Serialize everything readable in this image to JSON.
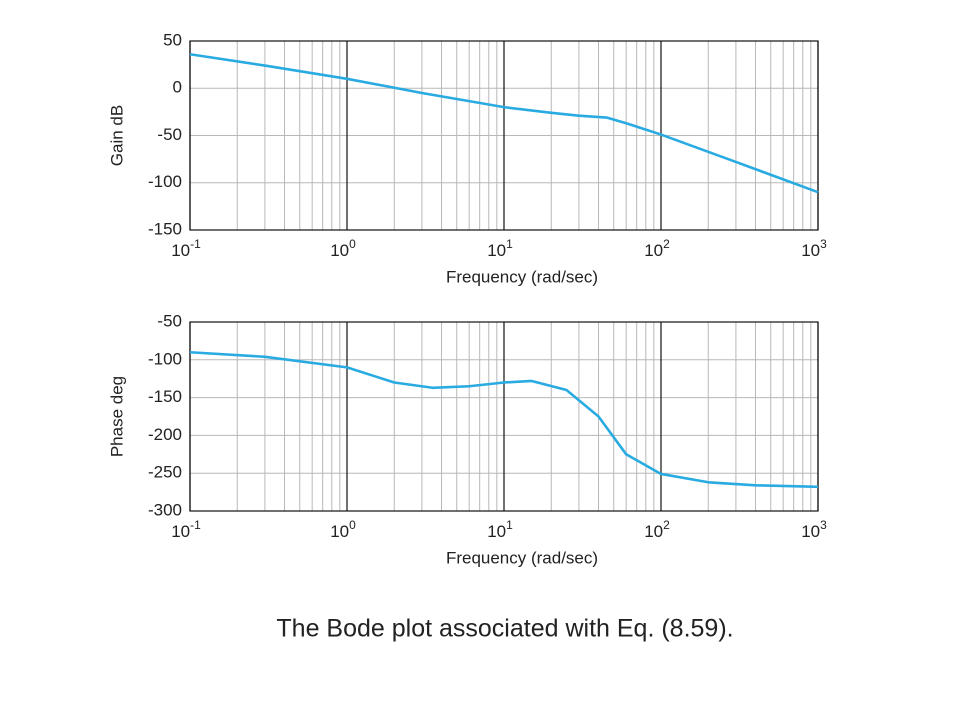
{
  "chart_data": [
    {
      "type": "line",
      "ylabel": "Gain dB",
      "xlabel": "Frequency (rad/sec)",
      "log_x": true,
      "grid": true,
      "minor_grid": true,
      "x": [
        0.1,
        0.3,
        1,
        3,
        10,
        20,
        30,
        45,
        60,
        100,
        300,
        1000
      ],
      "series": [
        {
          "color": "#29abe2",
          "values": [
            36,
            24,
            10,
            -5,
            -20,
            -26,
            -29,
            -31,
            -37,
            -49,
            -78,
            -110
          ]
        }
      ],
      "xlim": [
        0.1,
        1000
      ],
      "xticks": [
        {
          "value": 0.1,
          "label": "10",
          "exponent": "-1"
        },
        {
          "value": 1,
          "label": "10",
          "exponent": "0"
        },
        {
          "value": 10,
          "label": "10",
          "exponent": "1"
        },
        {
          "value": 100,
          "label": "10",
          "exponent": "2"
        },
        {
          "value": 1000,
          "label": "10",
          "exponent": "3"
        }
      ],
      "ylim": [
        -150,
        50
      ],
      "yticks": [
        -150,
        -100,
        -50,
        0,
        50
      ]
    },
    {
      "type": "line",
      "ylabel": "Phase deg",
      "xlabel": "Frequency (rad/sec)",
      "log_x": true,
      "grid": true,
      "minor_grid": true,
      "x": [
        0.1,
        0.3,
        1,
        2,
        3.5,
        6,
        10,
        15,
        25,
        40,
        60,
        100,
        200,
        400,
        1000
      ],
      "series": [
        {
          "color": "#29abe2",
          "values": [
            -90,
            -96,
            -110,
            -130,
            -137,
            -135,
            -130,
            -128,
            -140,
            -175,
            -225,
            -251,
            -262,
            -266,
            -268
          ]
        }
      ],
      "xlim": [
        0.1,
        1000
      ],
      "xticks": [
        {
          "value": 0.1,
          "label": "10",
          "exponent": "-1"
        },
        {
          "value": 1,
          "label": "10",
          "exponent": "0"
        },
        {
          "value": 10,
          "label": "10",
          "exponent": "1"
        },
        {
          "value": 100,
          "label": "10",
          "exponent": "2"
        },
        {
          "value": 1000,
          "label": "10",
          "exponent": "3"
        }
      ],
      "ylim": [
        -300,
        -50
      ],
      "yticks": [
        -300,
        -250,
        -200,
        -150,
        -100,
        -50
      ]
    }
  ],
  "caption": "The Bode plot associated with Eq. (8.59)."
}
